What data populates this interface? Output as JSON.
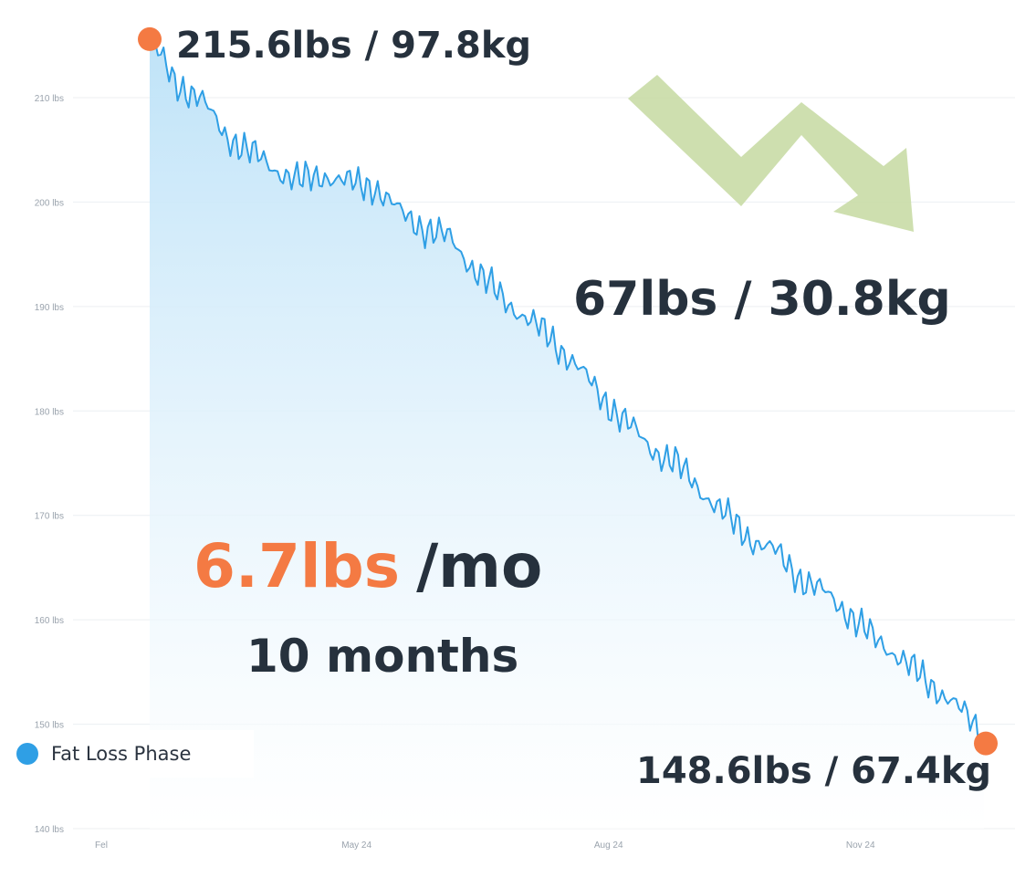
{
  "chart_data": {
    "type": "area",
    "title": "",
    "xlabel": "",
    "ylabel": "",
    "ylim": [
      140,
      215.6
    ],
    "x_ticks": [
      "Fel",
      "May 24",
      "Aug 24",
      "Nov 24"
    ],
    "y_ticks": [
      {
        "value": 210,
        "label": "210 lbs"
      },
      {
        "value": 200,
        "label": "200 lbs"
      },
      {
        "value": 190,
        "label": "190 lbs"
      },
      {
        "value": 180,
        "label": "180 lbs"
      },
      {
        "value": 170,
        "label": "170 lbs"
      },
      {
        "value": 160,
        "label": "160 lbs"
      },
      {
        "value": 150,
        "label": "150 lbs"
      },
      {
        "value": 140,
        "label": "140 lbs"
      }
    ],
    "grid": true,
    "legend_position": "bottom-left",
    "series": [
      {
        "name": "Fat Loss Phase",
        "color": "#2f9fe5",
        "x": [
          0.0,
          0.3,
          0.6,
          0.9,
          1.2,
          1.5,
          1.8,
          2.1,
          2.4,
          2.7,
          3.0,
          3.3,
          3.6,
          3.9,
          4.2,
          4.5,
          4.8,
          5.1,
          5.4,
          5.7,
          6.0,
          6.3,
          6.6,
          6.9,
          7.2,
          7.5,
          7.8,
          8.1,
          8.4,
          8.7,
          9.0,
          9.3,
          9.6,
          10.0
        ],
        "values": [
          215.6,
          211.5,
          210.0,
          206.5,
          204.8,
          203.2,
          202.0,
          202.6,
          201.8,
          201.5,
          199.0,
          197.5,
          196.5,
          193.5,
          191.0,
          189.0,
          187.0,
          184.5,
          181.5,
          179.0,
          176.5,
          175.0,
          172.5,
          170.0,
          167.8,
          166.5,
          164.0,
          162.5,
          160.5,
          158.0,
          156.5,
          154.0,
          152.5,
          148.6
        ]
      }
    ],
    "annotations": {
      "start_label": "215.6lbs / 97.8kg",
      "end_label": "148.6lbs / 67.4kg",
      "total_loss": "67lbs / 30.8kg",
      "rate_value": "6.7lbs",
      "rate_unit": "/mo",
      "duration": "10 months"
    },
    "colors": {
      "line": "#2f9fe5",
      "area_top": "#bfe3f8",
      "marker": "#f47a43",
      "arrow": "#c9dca6",
      "text_dark": "#26313d",
      "rate_accent": "#f47a43"
    }
  }
}
